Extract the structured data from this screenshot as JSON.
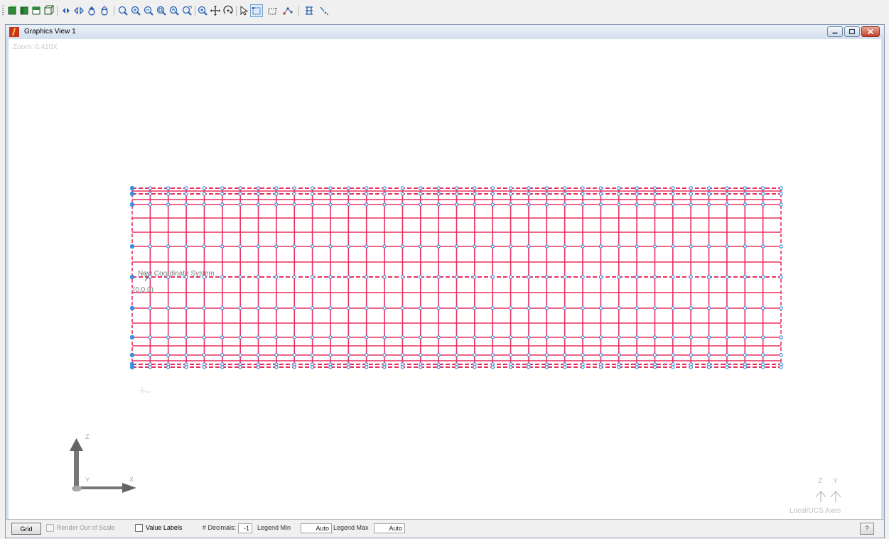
{
  "toolbar": {
    "buttons": [
      {
        "name": "view-isometric-icon"
      },
      {
        "name": "view-solid-icon"
      },
      {
        "name": "view-hidden-icon"
      },
      {
        "name": "view-wireframe-icon"
      },
      {
        "name": "rotate-left-icon"
      },
      {
        "name": "rotate-right-icon"
      },
      {
        "name": "rotate-up-icon"
      },
      {
        "name": "rotate-down-icon"
      },
      {
        "name": "zoom-window-icon"
      },
      {
        "name": "zoom-in-icon"
      },
      {
        "name": "zoom-out-icon"
      },
      {
        "name": "zoom-extents-icon"
      },
      {
        "name": "zoom-previous-icon"
      },
      {
        "name": "zoom-dynamic-icon"
      },
      {
        "name": "pan-icon"
      },
      {
        "name": "rotate-3d-icon"
      },
      {
        "name": "select-pointer-icon"
      },
      {
        "name": "select-window-icon"
      },
      {
        "name": "select-crossing-icon"
      },
      {
        "name": "select-nodes-icon"
      },
      {
        "name": "filter-icon"
      },
      {
        "name": "snap-icon"
      }
    ]
  },
  "window": {
    "title": "Graphics View 1",
    "zoom_label": "Zoom: 0.410X",
    "coordinate_system_label": "New Coordinate System",
    "origin_label": "(0,0,0)",
    "axis_triad": {
      "z": "Z",
      "x": "X",
      "y": "Y"
    },
    "ucs": {
      "z": "Z",
      "y": "Y",
      "label": "Local/UCS Axes"
    },
    "mesh_colors": {
      "member": "#e8305f",
      "node": "#3b8fe0",
      "dashed": "#e8305f"
    }
  },
  "statusbar": {
    "grid_label": "Grid",
    "render_out_of_scale_label": "Render Out of Scale",
    "value_labels_label": "Value Labels",
    "decimals_label": "# Decimals:",
    "decimals_value": "-1",
    "legend_min_label": "Legend Min",
    "legend_min_value": "Auto",
    "legend_max_label": "Legend Max",
    "legend_max_value": "Auto",
    "help_label": "?"
  }
}
